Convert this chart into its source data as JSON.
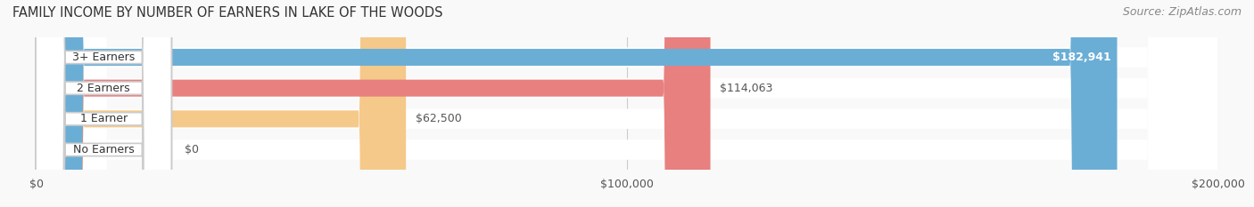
{
  "title": "FAMILY INCOME BY NUMBER OF EARNERS IN LAKE OF THE WOODS",
  "source": "Source: ZipAtlas.com",
  "categories": [
    "No Earners",
    "1 Earner",
    "2 Earners",
    "3+ Earners"
  ],
  "values": [
    0,
    62500,
    114063,
    182941
  ],
  "labels": [
    "$0",
    "$62,500",
    "$114,063",
    "$182,941"
  ],
  "bar_colors": [
    "#f4a0b0",
    "#f5c98a",
    "#e88080",
    "#6aaed6"
  ],
  "bar_edge_colors": [
    "#e07090",
    "#e0a060",
    "#c05050",
    "#3a7fbf"
  ],
  "bg_colors": [
    "#f5f5f5",
    "#f5f5f5",
    "#f5f5f5",
    "#f5f5f5"
  ],
  "xlim": [
    0,
    200000
  ],
  "xticks": [
    0,
    100000,
    200000
  ],
  "xticklabels": [
    "$0",
    "$100,000",
    "$200,000"
  ],
  "bar_height": 0.55,
  "figsize": [
    14.06,
    2.33
  ],
  "dpi": 100,
  "title_fontsize": 10.5,
  "label_fontsize": 9,
  "tick_fontsize": 9,
  "source_fontsize": 9
}
